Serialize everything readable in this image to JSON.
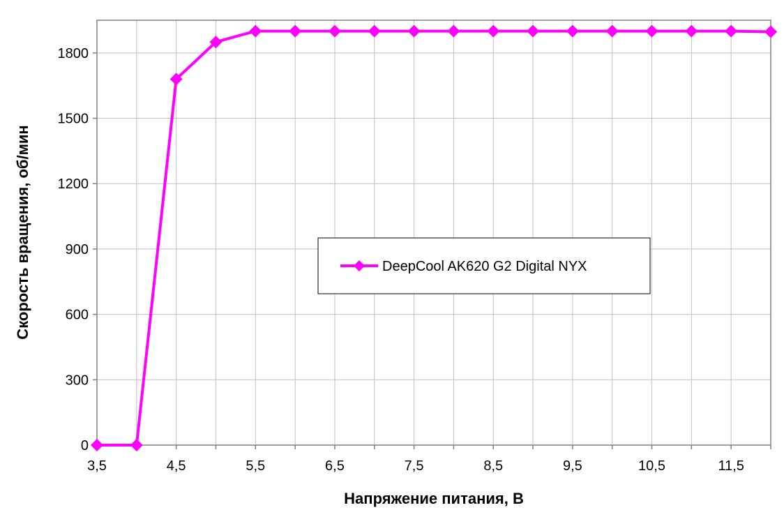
{
  "colors": {
    "series": "#ff00ff",
    "grid": "#c0c0c0",
    "axis": "#808080",
    "background": "#ffffff"
  },
  "chart_data": {
    "type": "line",
    "title": "",
    "xlabel": "Напряжение питания, В",
    "ylabel": "Скорость вращения, об/мин",
    "xlim": [
      3.5,
      12
    ],
    "ylim": [
      0,
      1950
    ],
    "x_tick_labels": [
      "3,5",
      "4,5",
      "5,5",
      "6,5",
      "7,5",
      "8,5",
      "9,5",
      "10,5",
      "11,5"
    ],
    "y_tick_labels": [
      "0",
      "300",
      "600",
      "900",
      "1200",
      "1500",
      "1800"
    ],
    "grid": true,
    "legend_position": "center-right",
    "marker": "diamond",
    "series": [
      {
        "name": "DeepCool AK620 G2 Digital NYX",
        "x": [
          3.5,
          4,
          4.5,
          5,
          5.5,
          6,
          6.5,
          7,
          7.5,
          8,
          8.5,
          9,
          9.5,
          10,
          10.5,
          11,
          11.5,
          12
        ],
        "values": [
          0,
          0,
          1680,
          1850,
          1900,
          1900,
          1900,
          1900,
          1900,
          1900,
          1900,
          1900,
          1900,
          1900,
          1900,
          1900,
          1900,
          1897
        ]
      }
    ]
  }
}
